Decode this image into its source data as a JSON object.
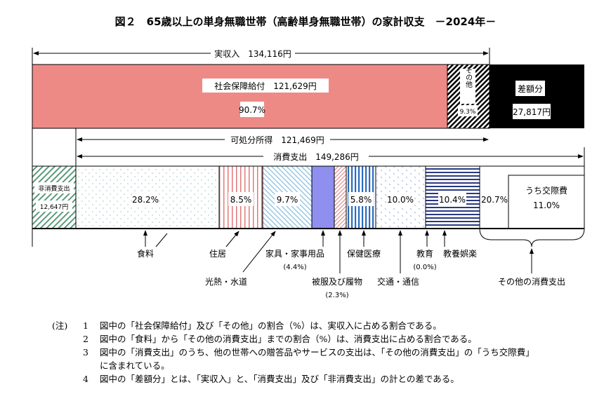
{
  "title": "図２　65歳以上の単身無職世帯（高齢単身無職世帯）の家計収支　－2024年－",
  "income": {
    "total_label": "実収入　134,116円",
    "social_security_label": "社会保障給付　121,629円",
    "social_security_pct": "90.7%",
    "other_label": "その他",
    "other_pct": "9.3%",
    "deficit_label": "差額分",
    "deficit_value": "27,817円",
    "disposable_label": "可処分所得　121,469円"
  },
  "expenditure": {
    "total_label": "消費支出　149,286円",
    "non_consumption_label": "非消費支出",
    "non_consumption_value": "12,647円",
    "segments": [
      {
        "name": "食料",
        "pct": "28.2%"
      },
      {
        "name": "住居",
        "pct": "8.5%"
      },
      {
        "name": "光熱・水道",
        "pct": "9.7%"
      },
      {
        "name": "家具・家事用品",
        "pct": "(4.4%)"
      },
      {
        "name": "被服及び履物",
        "pct": "(2.3%)"
      },
      {
        "name": "保健医療",
        "pct": "5.8%"
      },
      {
        "name": "交通・通信",
        "pct": "10.0%"
      },
      {
        "name": "教育",
        "pct": "(0.0%)"
      },
      {
        "name": "教養娯楽",
        "pct": "10.4%"
      },
      {
        "name": "その他の消費支出",
        "pct": "20.7%"
      }
    ],
    "social_label": "うち交際費",
    "social_pct": "11.0%"
  },
  "colors": {
    "social_security": "#ee8a86",
    "furniture": "#8f8ff0",
    "deficit": "#000000"
  },
  "notes": {
    "header": "(注)",
    "items": [
      {
        "num": "1",
        "text": "図中の「社会保障給付」及び「その他」の割合（%）は、実収入に占める割合である。"
      },
      {
        "num": "2",
        "text": "図中の「食料」から「その他の消費支出」までの割合（%）は、消費支出に占める割合である。"
      },
      {
        "num": "3",
        "text": "図中の「消費支出」のうち、他の世帯への贈答品やサービスの支出は、「その他の消費支出」の「うち交際費」",
        "cont": "に含まれている。"
      },
      {
        "num": "4",
        "text": "図中の「差額分」とは、「実収入」と、「消費支出」及び「非消費支出」の計との差である。"
      }
    ]
  }
}
